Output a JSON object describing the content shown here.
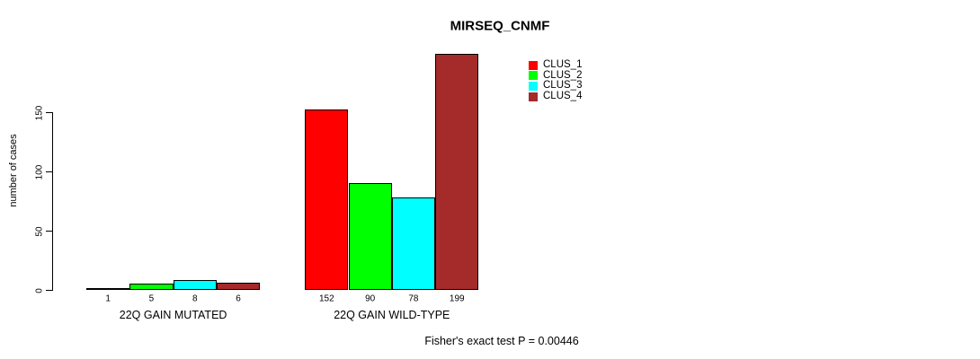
{
  "chart_data": {
    "type": "bar",
    "title": "MIRSEQ_CNMF",
    "xlabel": "",
    "ylabel": "number of cases",
    "categories": [
      "22Q GAIN MUTATED",
      "22Q GAIN WILD-TYPE"
    ],
    "series": [
      {
        "name": "CLUS_1",
        "color": "#ff0000",
        "values": [
          1,
          152
        ]
      },
      {
        "name": "CLUS_2",
        "color": "#00ff00",
        "values": [
          5,
          90
        ]
      },
      {
        "name": "CLUS_3",
        "color": "#00ffff",
        "values": [
          8,
          78
        ]
      },
      {
        "name": "CLUS_4",
        "color": "#a52a2a",
        "values": [
          6,
          199
        ]
      }
    ],
    "yticks": [
      0,
      50,
      100,
      150
    ],
    "ylim": [
      0,
      205
    ],
    "grid": false,
    "legend_position": "top-right",
    "bar_border_color": "#000000",
    "value_labels_shown": true,
    "annotation": "Fisher's exact test P = 0.00446"
  }
}
